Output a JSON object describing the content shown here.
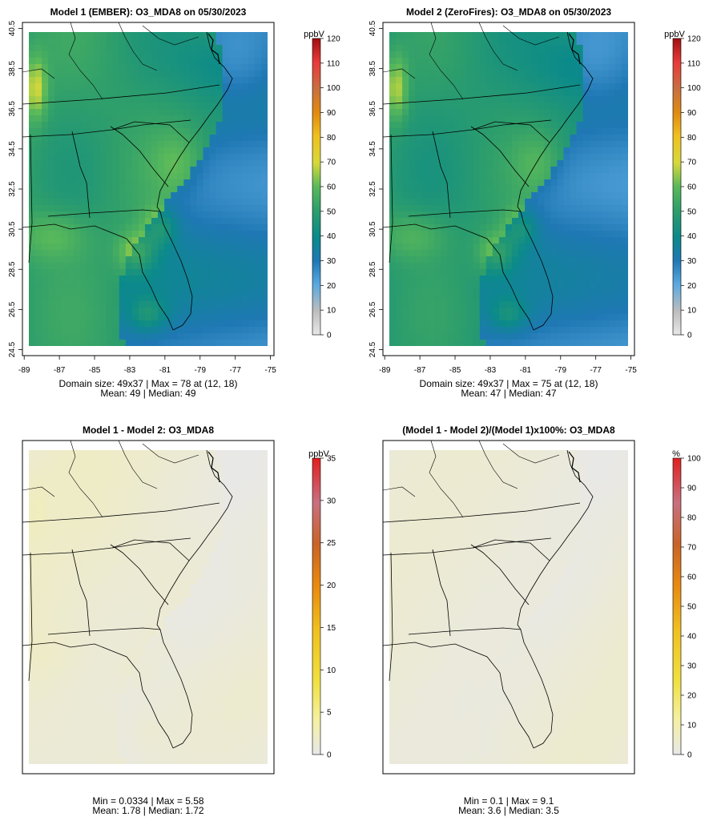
{
  "chart_data": [
    {
      "type": "heatmap",
      "title": "Model 1 (EMBER): O3_MDA8 on 05/30/2023",
      "variable": "O3_MDA8",
      "units_label": "ppbV",
      "x_ticks": [
        "-89",
        "-87",
        "-85",
        "-83",
        "-81",
        "-79",
        "-77",
        "-75"
      ],
      "y_ticks": [
        "40.5",
        "38.5",
        "36.5",
        "34.5",
        "32.5",
        "30.5",
        "28.5",
        "26.5",
        "24.5"
      ],
      "xlim": [
        -89.1,
        -74.8
      ],
      "ylim": [
        24.2,
        40.8
      ],
      "colorbar_ticks": [
        "0",
        "10",
        "20",
        "30",
        "40",
        "50",
        "60",
        "70",
        "80",
        "90",
        "100",
        "110",
        "120"
      ],
      "colorbar_range": [
        0,
        120
      ],
      "stats_line1": "Domain size: 49x37 | Max = 78 at (12, 18)",
      "stats_line2": "Mean: 49 |  Median: 49",
      "domain_size": "49x37",
      "max": 78,
      "max_at": "(12, 18)",
      "mean": 49,
      "median": 49
    },
    {
      "type": "heatmap",
      "title": "Model 2 (ZeroFires): O3_MDA8 on 05/30/2023",
      "variable": "O3_MDA8",
      "units_label": "ppbV",
      "x_ticks": [
        "-89",
        "-87",
        "-85",
        "-83",
        "-81",
        "-79",
        "-77",
        "-75"
      ],
      "y_ticks": [
        "40.5",
        "38.5",
        "36.5",
        "34.5",
        "32.5",
        "30.5",
        "28.5",
        "26.5",
        "24.5"
      ],
      "xlim": [
        -89.1,
        -74.8
      ],
      "ylim": [
        24.2,
        40.8
      ],
      "colorbar_ticks": [
        "0",
        "10",
        "20",
        "30",
        "40",
        "50",
        "60",
        "70",
        "80",
        "90",
        "100",
        "110",
        "120"
      ],
      "colorbar_range": [
        0,
        120
      ],
      "stats_line1": "Domain size: 49x37 | Max = 75 at (12, 18)",
      "stats_line2": "Mean: 47 |  Median: 47",
      "domain_size": "49x37",
      "max": 75,
      "max_at": "(12, 18)",
      "mean": 47,
      "median": 47
    },
    {
      "type": "heatmap",
      "title": "Model 1 - Model 2: O3_MDA8",
      "variable": "O3_MDA8",
      "units_label": "ppbV",
      "colorbar_ticks": [
        "0",
        "5",
        "10",
        "15",
        "20",
        "25",
        "30",
        "35"
      ],
      "colorbar_range": [
        0,
        35
      ],
      "stats_line1": "Min = 0.0334 | Max = 5.58",
      "stats_line2": "Mean: 1.78 |  Median: 1.72",
      "min": 0.0334,
      "max": 5.58,
      "mean": 1.78,
      "median": 1.72
    },
    {
      "type": "heatmap",
      "title": "(Model 1 - Model 2)/(Model 1)x100%: O3_MDA8",
      "variable": "O3_MDA8",
      "units_label": "%",
      "colorbar_ticks": [
        "0",
        "10",
        "20",
        "30",
        "40",
        "50",
        "60",
        "70",
        "80",
        "90",
        "100"
      ],
      "colorbar_range": [
        0,
        100
      ],
      "stats_line1": "Min = 0.1 | Max = 9.1",
      "stats_line2": "Mean: 3.6 |  Median: 3.5",
      "min": 0.1,
      "max": 9.1,
      "mean": 3.6,
      "median": 3.5
    }
  ],
  "colors": {
    "conc_scale": [
      "#e8e8e8",
      "#bdbdbd",
      "#5aa9e0",
      "#1f78b4",
      "#0b8a8a",
      "#2e9e6b",
      "#59b95a",
      "#d7d93a",
      "#f0c020",
      "#e08a10",
      "#d2691e",
      "#e83a3a",
      "#a01010"
    ],
    "diff_scale": [
      "#e8e8e8",
      "#f5f0a0",
      "#f0e040",
      "#f0c020",
      "#e88a10",
      "#c86428",
      "#c87080",
      "#e02020"
    ]
  }
}
